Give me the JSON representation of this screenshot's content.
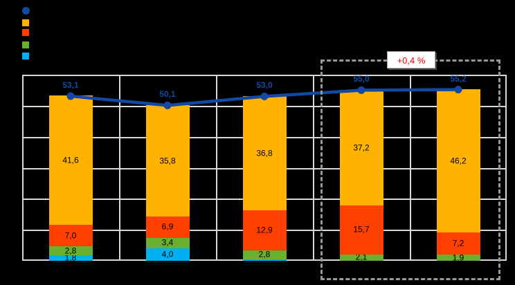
{
  "page": {
    "background": "#000000"
  },
  "legend": {
    "items": [
      {
        "name": "line-total-series",
        "marker": "circle",
        "color": "#1249A5"
      },
      {
        "name": "orange-series",
        "marker": "square",
        "color": "#FFB300"
      },
      {
        "name": "red-series",
        "marker": "square",
        "color": "#FF4000"
      },
      {
        "name": "green-series",
        "marker": "square",
        "color": "#68B030"
      },
      {
        "name": "cyan-series",
        "marker": "square",
        "color": "#00B0F0"
      }
    ]
  },
  "chart_data": {
    "type": "bar",
    "subtype": "stacked-bars-with-total-line",
    "title": "",
    "xlabel": "",
    "ylabel": "",
    "categories": [
      "",
      "",
      "",
      "",
      ""
    ],
    "ylim": [
      0,
      60
    ],
    "y_gridline_step": 10,
    "grid": true,
    "legend_position": "top-left",
    "series": [
      {
        "name": "cyan-segment",
        "color": "#00B0F0",
        "values": [
          1.8,
          4.0,
          0.5,
          0,
          0
        ],
        "labels": [
          "1,8",
          "4,0",
          "",
          "",
          ""
        ]
      },
      {
        "name": "green-segment",
        "color": "#68B030",
        "values": [
          2.8,
          3.4,
          2.8,
          2.1,
          1.9
        ],
        "labels": [
          "2,8",
          "3,4",
          "2,8",
          "2,1",
          "1,9"
        ]
      },
      {
        "name": "red-segment",
        "color": "#FF4000",
        "values": [
          7.0,
          6.9,
          12.9,
          15.7,
          7.2
        ],
        "labels": [
          "7,0",
          "6,9",
          "12,9",
          "15,7",
          "7,2"
        ]
      },
      {
        "name": "orange-segment",
        "color": "#FFB300",
        "values": [
          41.6,
          35.8,
          36.8,
          37.2,
          46.2
        ],
        "labels": [
          "41,6",
          "35,8",
          "36,8",
          "37,2",
          "46,2"
        ]
      }
    ],
    "line_series": {
      "name": "total-line",
      "color": "#1249A5",
      "values": [
        53.1,
        50.1,
        53.0,
        55.0,
        55.2
      ],
      "labels": [
        "53,1",
        "50,1",
        "53,0",
        "55,0",
        "55,2"
      ]
    },
    "annotation": {
      "text": "+0,4 %",
      "color": "#FF0000"
    },
    "highlight_box": {
      "style": "dashed",
      "covers_categories": [
        3,
        4
      ]
    },
    "colors": {
      "gridline": "#D9D9D9",
      "plot_background": "#000000"
    }
  }
}
